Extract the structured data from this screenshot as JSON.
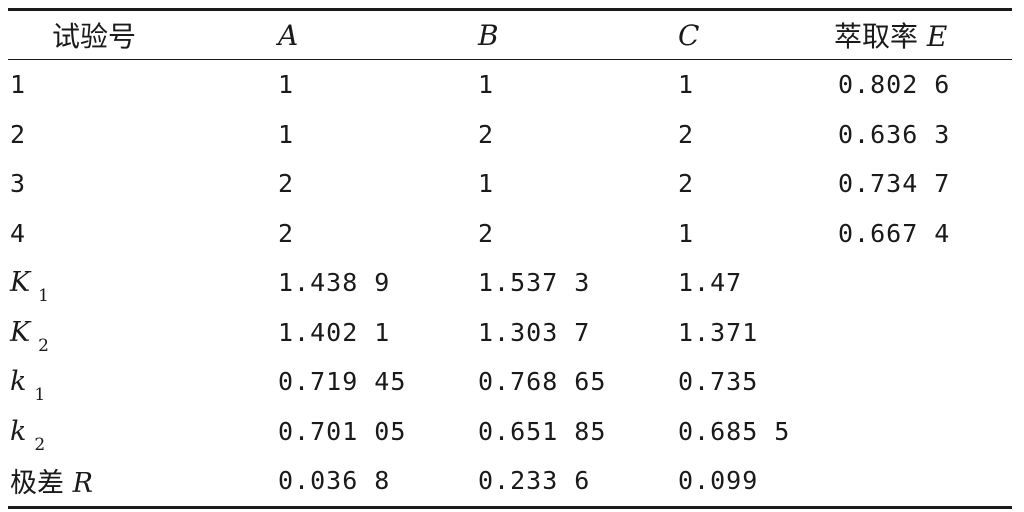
{
  "table": {
    "headers": {
      "trial_no": "试验号",
      "a": "A",
      "b": "B",
      "c": "C",
      "e_label": "萃取率",
      "e_symbol": "E"
    },
    "rows": [
      {
        "label": "1",
        "a": "1",
        "b": "1",
        "c": "1",
        "e": "0.802 6"
      },
      {
        "label": "2",
        "a": "1",
        "b": "2",
        "c": "2",
        "e": "0.636 3"
      },
      {
        "label": "3",
        "a": "2",
        "b": "1",
        "c": "2",
        "e": "0.734 7"
      },
      {
        "label": "4",
        "a": "2",
        "b": "2",
        "c": "1",
        "e": "0.667 4"
      }
    ],
    "stats": [
      {
        "symbol": "K",
        "sub": "1",
        "a": "1.438 9",
        "b": "1.537 3",
        "c": "1.47"
      },
      {
        "symbol": "K",
        "sub": "2",
        "a": "1.402 1",
        "b": "1.303 7",
        "c": "1.371"
      },
      {
        "symbol": "k",
        "sub": "1",
        "a": "0.719 45",
        "b": "0.768 65",
        "c": "0.735"
      },
      {
        "symbol": "k",
        "sub": "2",
        "a": "0.701 05",
        "b": "0.651 85",
        "c": "0.685 5"
      }
    ],
    "range": {
      "label": "极差",
      "symbol": "R",
      "a": "0.036 8",
      "b": "0.233 6",
      "c": "0.099"
    }
  }
}
